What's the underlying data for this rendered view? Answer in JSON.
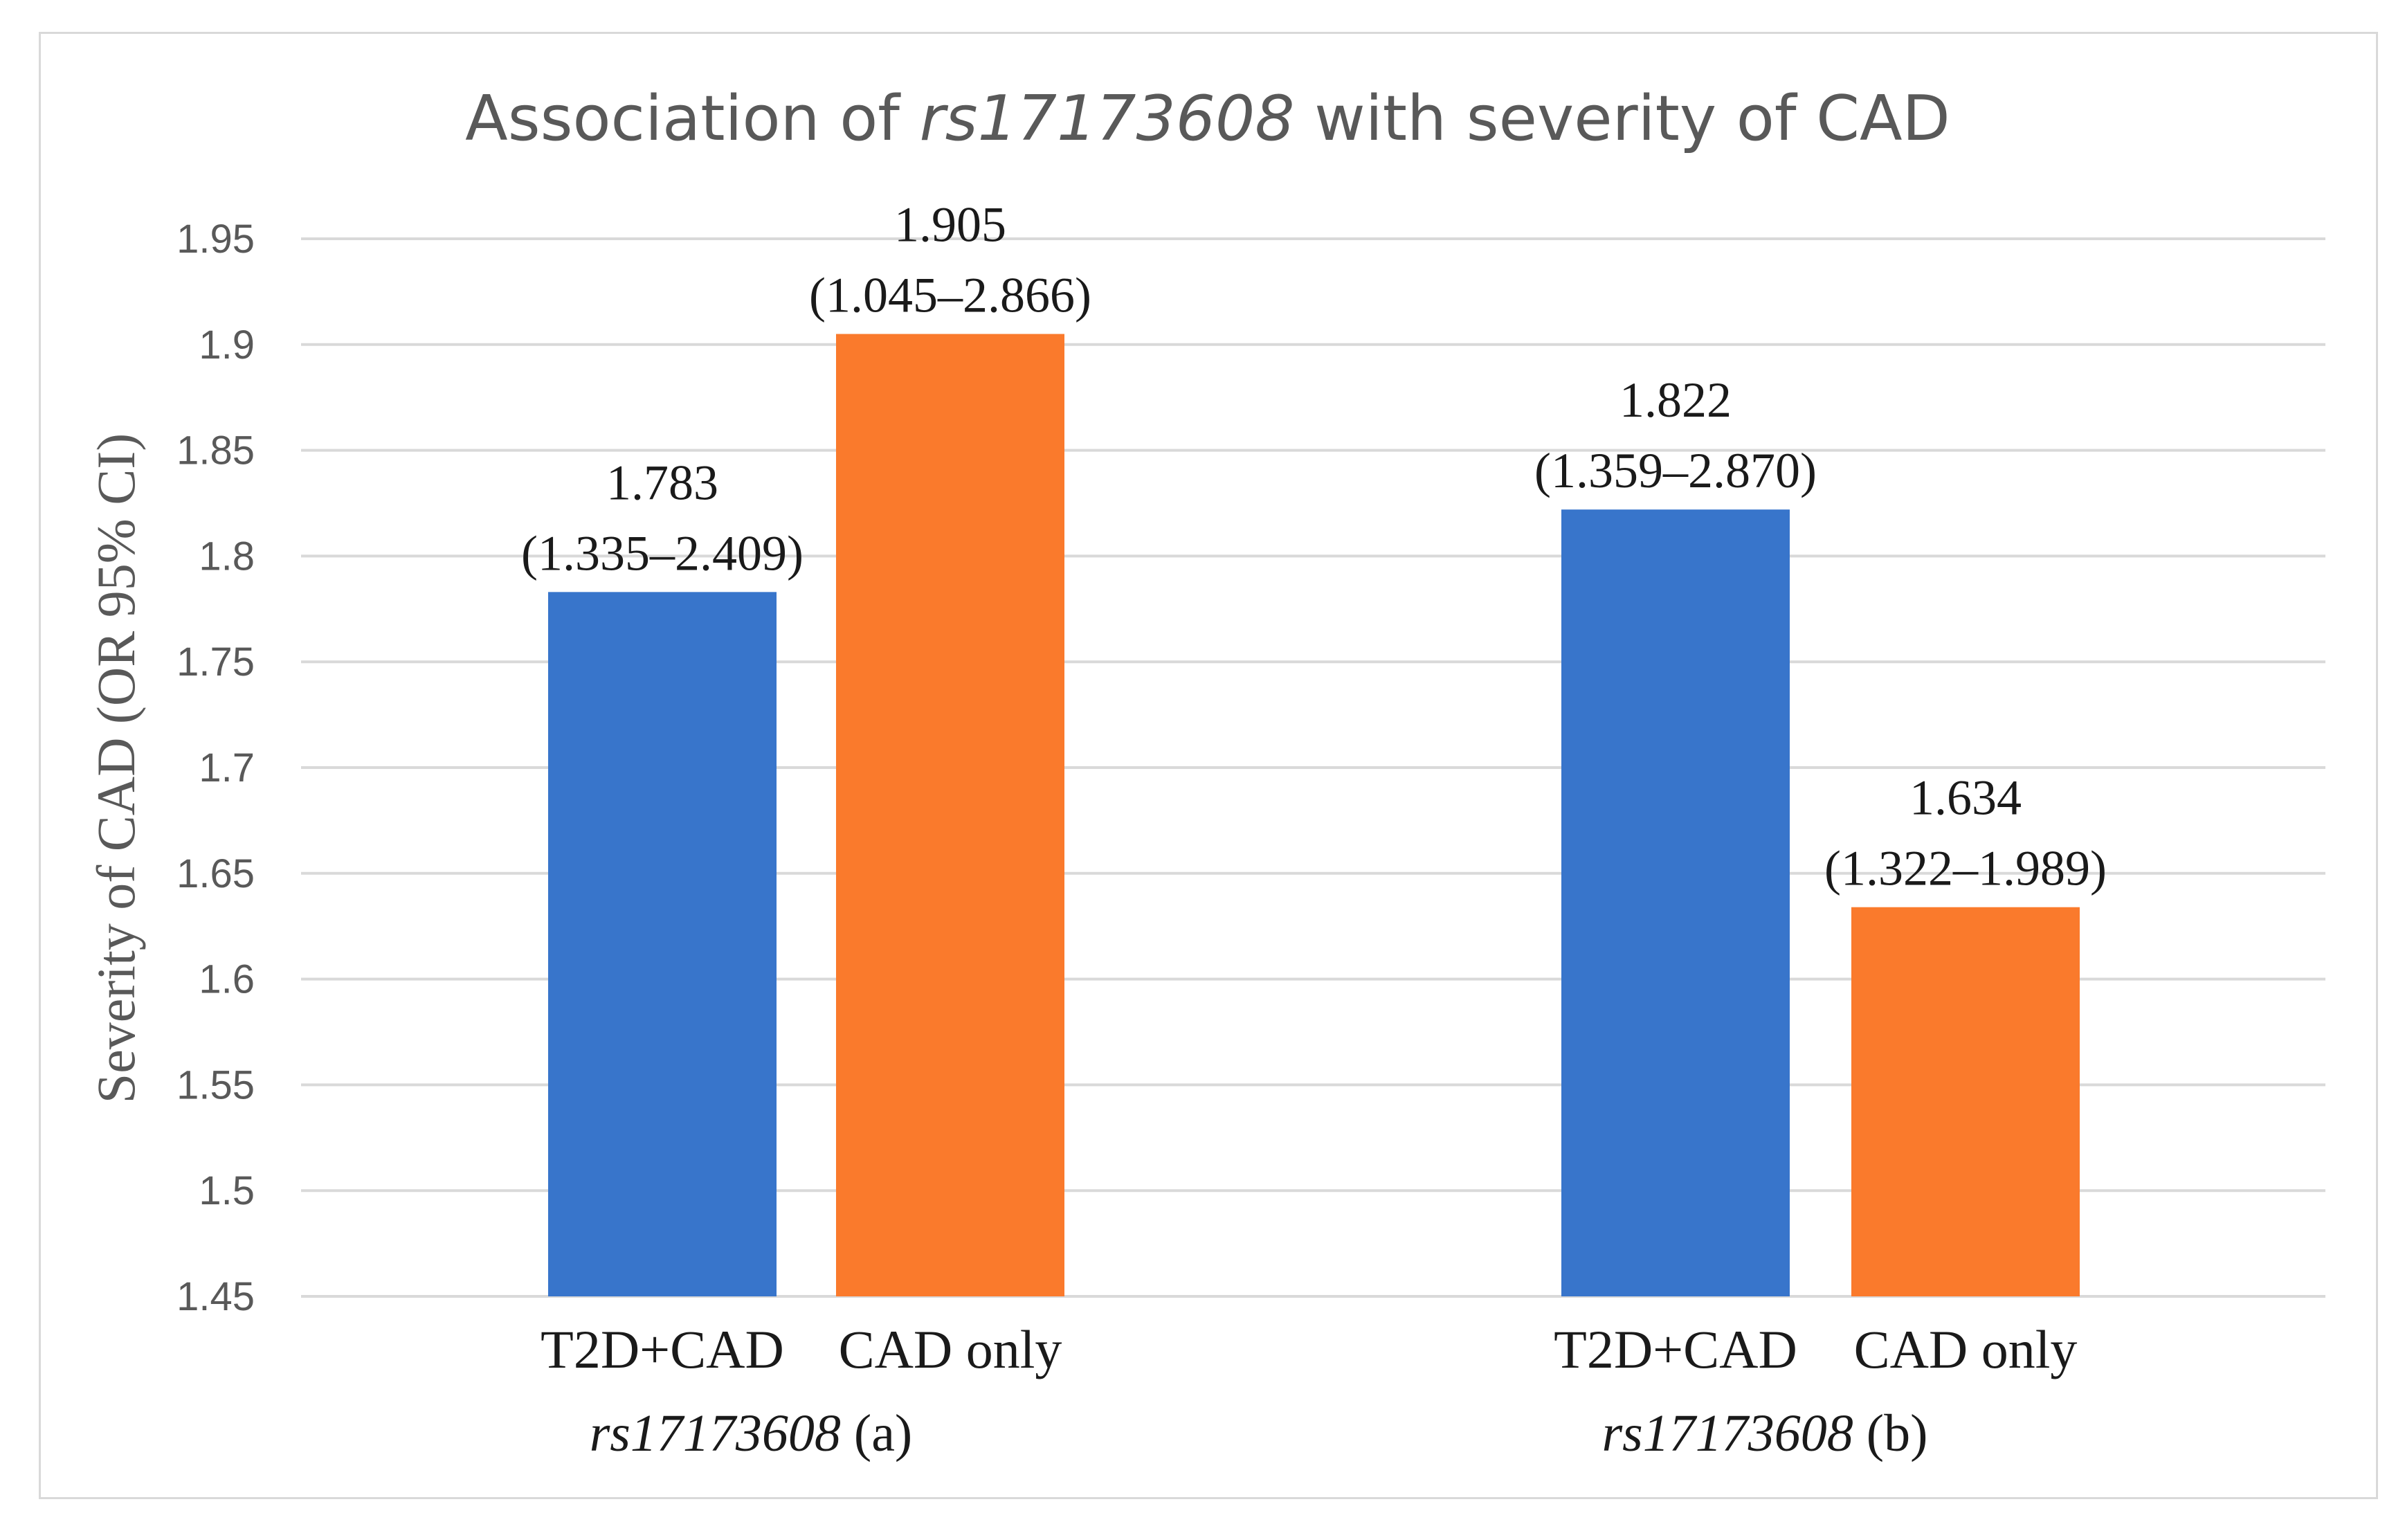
{
  "chart_data": {
    "type": "bar",
    "title_parts": [
      "Association of ",
      "rs17173608",
      " with severity of CAD"
    ],
    "ylabel": "Severity of CAD   (OR 95% CI)",
    "ylim": [
      1.45,
      1.95
    ],
    "yticks": [
      "1.45",
      "1.5",
      "1.55",
      "1.6",
      "1.65",
      "1.7",
      "1.75",
      "1.8",
      "1.85",
      "1.9",
      "1.95"
    ],
    "grid": true,
    "groups": [
      {
        "label_italic": "rs17173608",
        "label_suffix": " (a)",
        "bars": [
          {
            "category": "T2D+CAD",
            "value": 1.783,
            "value_label": "1.783",
            "ci_label": "(1.335–2.409)",
            "color": "#3875cb"
          },
          {
            "category": "CAD only",
            "value": 1.905,
            "value_label": "1.905",
            "ci_label": "(1.045–2.866)",
            "color": "#fa7a2c"
          }
        ]
      },
      {
        "label_italic": "rs17173608",
        "label_suffix": " (b)",
        "bars": [
          {
            "category": "T2D+CAD",
            "value": 1.822,
            "value_label": "1.822",
            "ci_label": "(1.359–2.870)",
            "color": "#3875cb"
          },
          {
            "category": "CAD only",
            "value": 1.634,
            "value_label": "1.634",
            "ci_label": "(1.322–1.989)",
            "color": "#fa7a2c"
          }
        ]
      }
    ]
  }
}
